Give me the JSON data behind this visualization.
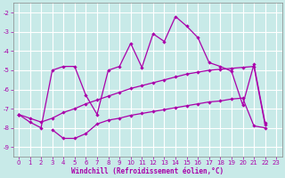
{
  "xlabel": "Windchill (Refroidissement éolien,°C)",
  "background_color": "#c8eae8",
  "grid_color": "#ffffff",
  "line_color": "#aa00aa",
  "x_values": [
    0,
    1,
    2,
    3,
    4,
    5,
    6,
    7,
    8,
    9,
    10,
    11,
    12,
    13,
    14,
    15,
    16,
    17,
    18,
    19,
    20,
    21,
    22,
    23
  ],
  "line1": [
    -7.3,
    -7.7,
    -8.0,
    -5.0,
    -4.8,
    -4.8,
    -6.3,
    -7.3,
    -5.0,
    -4.8,
    -3.6,
    -4.85,
    -3.1,
    -3.5,
    -2.2,
    -2.7,
    -3.3,
    -4.6,
    -4.8,
    -5.05,
    -6.8,
    -4.7,
    -7.75,
    null
  ],
  "line2": [
    -7.3,
    -7.5,
    -7.7,
    -7.5,
    -7.2,
    -7.0,
    -6.75,
    -6.55,
    -6.35,
    -6.15,
    -5.95,
    -5.8,
    -5.65,
    -5.5,
    -5.35,
    -5.2,
    -5.1,
    -5.0,
    -4.95,
    -4.9,
    -4.85,
    -4.8,
    -7.85,
    null
  ],
  "line3": [
    -7.3,
    null,
    null,
    -8.1,
    -8.55,
    -8.55,
    -8.3,
    -7.8,
    -7.6,
    -7.5,
    -7.35,
    -7.25,
    -7.15,
    -7.05,
    -6.95,
    -6.85,
    -6.75,
    -6.65,
    -6.6,
    -6.5,
    -6.45,
    -7.9,
    -8.0,
    null
  ],
  "ylim": [
    -9.5,
    -1.5
  ],
  "xlim": [
    -0.5,
    23.5
  ],
  "yticks": [
    -2,
    -3,
    -4,
    -5,
    -6,
    -7,
    -8,
    -9
  ],
  "xticks": [
    0,
    1,
    2,
    3,
    4,
    5,
    6,
    7,
    8,
    9,
    10,
    11,
    12,
    13,
    14,
    15,
    16,
    17,
    18,
    19,
    20,
    21,
    22,
    23
  ],
  "marker_size": 2.2,
  "line_width": 0.9,
  "tick_fontsize": 5.0,
  "xlabel_fontsize": 5.5
}
